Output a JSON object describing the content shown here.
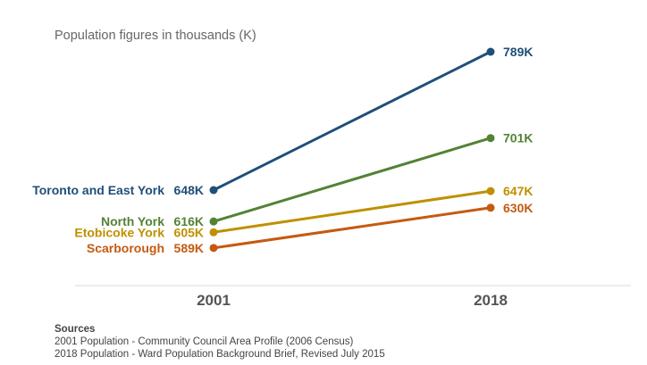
{
  "subtitle": "Population figures in thousands (K)",
  "sources": {
    "heading": "Sources",
    "lines": [
      "2001 Population - Community Council Area Profile (2006 Census)",
      "2018 Population - Ward Population Background Brief, Revised July 2015"
    ]
  },
  "chart_data": {
    "type": "line",
    "title": "",
    "subtitle": "Population figures in thousands (K)",
    "xlabel": "",
    "ylabel": "",
    "unit": "K",
    "categories": [
      "2001",
      "2018"
    ],
    "ylim": [
      520,
      820
    ],
    "grid": false,
    "legend": "none (series labelled at left end)",
    "series": [
      {
        "name": "Toronto and East York",
        "values": [
          648,
          789
        ],
        "labels": [
          "648K",
          "789K"
        ],
        "color": "#1f4e79"
      },
      {
        "name": "North York",
        "values": [
          616,
          701
        ],
        "labels": [
          "616K",
          "701K"
        ],
        "color": "#548235"
      },
      {
        "name": "Etobicoke York",
        "values": [
          605,
          647
        ],
        "labels": [
          "605K",
          "647K"
        ],
        "color": "#bf9000"
      },
      {
        "name": "Scarborough",
        "values": [
          589,
          630
        ],
        "labels": [
          "589K",
          "630K"
        ],
        "color": "#c55a11"
      }
    ]
  }
}
